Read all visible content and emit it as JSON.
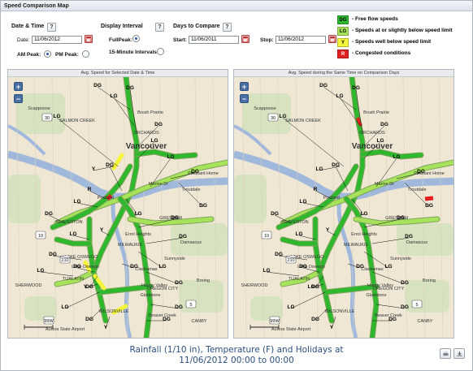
{
  "window": {
    "title": "Speed Comparison Map"
  },
  "controls": {
    "date_time": {
      "label": "Date & Time",
      "date_label": "Date:",
      "date_value": "11/06/2012",
      "am_peak_label": "AM Peak:",
      "pm_peak_label": "PM Peak:",
      "am_peak_selected": true
    },
    "display_interval": {
      "label": "Display Interval",
      "fullpeak_label": "FullPeak:",
      "fifteen_min_label": "15-Minute Intervals:",
      "selected": "FullPeak"
    },
    "days_to_compare": {
      "label": "Days to Compare",
      "start_label": "Start:",
      "start_value": "11/06/2011",
      "stop_label": "Stop:",
      "stop_value": "11/06/2012"
    },
    "help_glyph": "?"
  },
  "legend": [
    {
      "code": "DG",
      "text": "- Free flow speeds",
      "color": "#2db82d"
    },
    {
      "code": "LG",
      "text": "- Speeds at or slightly below speed limit",
      "color": "#a6e35b"
    },
    {
      "code": "Y",
      "text": "- Speeds well below speed limit",
      "color": "#f4f43a"
    },
    {
      "code": "R",
      "text": "- Congested conditions",
      "color": "#e21f1f"
    }
  ],
  "panels": {
    "left": {
      "title": "Avg. Speed for Selected Date & Time"
    },
    "right": {
      "title": "Avg. Speed during the Same Time on Comparison Days"
    },
    "zoom_in": "+",
    "zoom_out": "−"
  },
  "map_labels": {
    "places": [
      "SALMON CREEK",
      "Brush Prairie",
      "ORCHARDS",
      "Vancouver",
      "Marine Dr",
      "Troutdale",
      "GRESHAM",
      "BEAVERTON",
      "MILWAUKIE",
      "LAKE OSWEGO",
      "TUALATIN",
      "WILSONVILLE",
      "SHERWOOD",
      "Clackamas",
      "Damascus",
      "Happy Valley",
      "Boring",
      "Beaver Creek",
      "CANBY",
      "Aurora State Airport",
      "Scappoose",
      "Errol Heights",
      "Sunnyside",
      "Gladstone",
      "OREGON CITY",
      "Lake Oswego",
      "Pleasant Home",
      "Portland"
    ],
    "codes": [
      "DG",
      "LG",
      "Y",
      "R"
    ],
    "road_numbers": [
      "30",
      "10",
      "210",
      "99W",
      "5"
    ]
  },
  "caption": {
    "line1": "Rainfall (1/10 in), Temperature (F) and Holidays at",
    "line2": "11/06/2012 00:00 to 00:00"
  },
  "colors": {
    "dg": "#2db82d",
    "lg": "#a6e35b",
    "y": "#f4f43a",
    "r": "#e21f1f",
    "water": "#9fb8dc",
    "land": "#efe7d4"
  }
}
